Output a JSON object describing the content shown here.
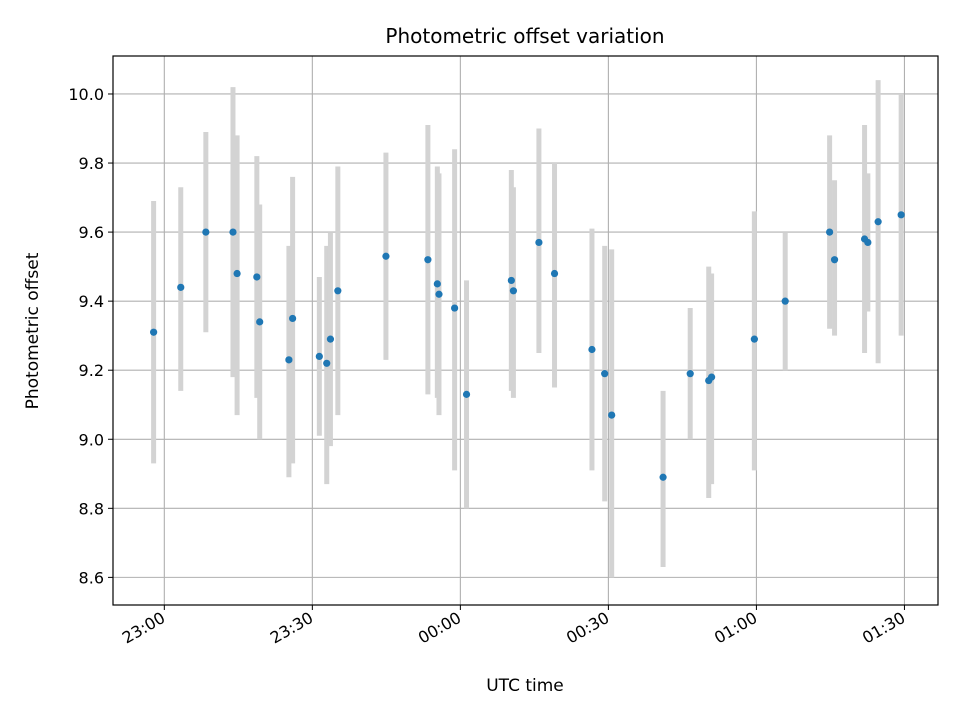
{
  "chart_data": {
    "type": "scatter",
    "title": "Photometric offset variation",
    "xlabel": "UTC time",
    "ylabel": "Photometric offset",
    "x_ticks": [
      "23:00",
      "23:30",
      "00:00",
      "00:30",
      "01:00",
      "01:30"
    ],
    "y_ticks": [
      "8.6",
      "8.8",
      "9.0",
      "9.2",
      "9.4",
      "9.6",
      "9.8",
      "10.0"
    ],
    "xlim": [
      "22:49:36",
      "01:36:48"
    ],
    "ylim": [
      8.52,
      10.11
    ],
    "grid": true,
    "colors": {
      "marker": "#1f77b4",
      "errorbar": "#d3d3d3",
      "grid": "#b0b0b0"
    },
    "points": [
      {
        "t": "22:57:50",
        "y": 9.31,
        "lo": 8.93,
        "hi": 9.69
      },
      {
        "t": "23:03:20",
        "y": 9.44,
        "lo": 9.14,
        "hi": 9.73
      },
      {
        "t": "23:08:25",
        "y": 9.6,
        "lo": 9.31,
        "hi": 9.89
      },
      {
        "t": "23:13:55",
        "y": 9.6,
        "lo": 9.18,
        "hi": 10.02
      },
      {
        "t": "23:14:45",
        "y": 9.48,
        "lo": 9.07,
        "hi": 9.88
      },
      {
        "t": "23:18:45",
        "y": 9.47,
        "lo": 9.12,
        "hi": 9.82
      },
      {
        "t": "23:19:20",
        "y": 9.34,
        "lo": 9.0,
        "hi": 9.68
      },
      {
        "t": "23:25:15",
        "y": 9.23,
        "lo": 8.89,
        "hi": 9.56
      },
      {
        "t": "23:26:00",
        "y": 9.35,
        "lo": 8.93,
        "hi": 9.76
      },
      {
        "t": "23:31:25",
        "y": 9.24,
        "lo": 9.01,
        "hi": 9.47
      },
      {
        "t": "23:32:55",
        "y": 9.22,
        "lo": 8.87,
        "hi": 9.56
      },
      {
        "t": "23:33:40",
        "y": 9.29,
        "lo": 8.98,
        "hi": 9.6
      },
      {
        "t": "23:35:10",
        "y": 9.43,
        "lo": 9.07,
        "hi": 9.79
      },
      {
        "t": "23:44:55",
        "y": 9.53,
        "lo": 9.23,
        "hi": 9.83
      },
      {
        "t": "23:53:25",
        "y": 9.52,
        "lo": 9.13,
        "hi": 9.91
      },
      {
        "t": "23:55:20",
        "y": 9.45,
        "lo": 9.12,
        "hi": 9.79
      },
      {
        "t": "23:55:40",
        "y": 9.42,
        "lo": 9.07,
        "hi": 9.77
      },
      {
        "t": "23:58:50",
        "y": 9.38,
        "lo": 8.91,
        "hi": 9.84
      },
      {
        "t": "00:01:15",
        "y": 9.13,
        "lo": 8.8,
        "hi": 9.46
      },
      {
        "t": "00:10:20",
        "y": 9.46,
        "lo": 9.14,
        "hi": 9.78
      },
      {
        "t": "00:10:45",
        "y": 9.43,
        "lo": 9.12,
        "hi": 9.73
      },
      {
        "t": "00:15:55",
        "y": 9.57,
        "lo": 9.25,
        "hi": 9.9
      },
      {
        "t": "00:19:05",
        "y": 9.48,
        "lo": 9.15,
        "hi": 9.8
      },
      {
        "t": "00:26:40",
        "y": 9.26,
        "lo": 8.91,
        "hi": 9.61
      },
      {
        "t": "00:29:15",
        "y": 9.19,
        "lo": 8.82,
        "hi": 9.56
      },
      {
        "t": "00:30:40",
        "y": 9.07,
        "lo": 8.6,
        "hi": 9.55
      },
      {
        "t": "00:41:05",
        "y": 8.89,
        "lo": 8.63,
        "hi": 9.14
      },
      {
        "t": "00:46:35",
        "y": 9.19,
        "lo": 9.0,
        "hi": 9.38
      },
      {
        "t": "00:50:20",
        "y": 9.17,
        "lo": 8.83,
        "hi": 9.5
      },
      {
        "t": "00:50:55",
        "y": 9.18,
        "lo": 8.87,
        "hi": 9.48
      },
      {
        "t": "00:59:35",
        "y": 9.29,
        "lo": 8.91,
        "hi": 9.66
      },
      {
        "t": "01:05:50",
        "y": 9.4,
        "lo": 9.2,
        "hi": 9.6
      },
      {
        "t": "01:14:50",
        "y": 9.6,
        "lo": 9.32,
        "hi": 9.88
      },
      {
        "t": "01:15:50",
        "y": 9.52,
        "lo": 9.3,
        "hi": 9.75
      },
      {
        "t": "01:21:55",
        "y": 9.58,
        "lo": 9.25,
        "hi": 9.91
      },
      {
        "t": "01:22:35",
        "y": 9.57,
        "lo": 9.37,
        "hi": 9.77
      },
      {
        "t": "01:24:40",
        "y": 9.63,
        "lo": 9.22,
        "hi": 10.04
      },
      {
        "t": "01:29:20",
        "y": 9.65,
        "lo": 9.3,
        "hi": 10.0
      }
    ]
  }
}
